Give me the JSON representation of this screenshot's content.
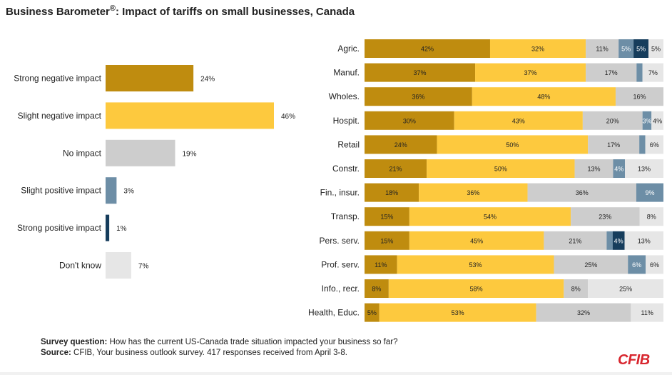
{
  "title_main": "Business Barometer",
  "title_reg": "®",
  "title_rest": ": Impact of tariffs on small businesses, Canada",
  "footer": {
    "question_label": "Survey question:",
    "question_text": " How has the current US-Canada trade situation impacted your business so far?",
    "source_label": "Source:",
    "source_text": " CFIB, Your business outlook survey. 417 responses received from April 3-8."
  },
  "logo": "CFIB",
  "colors": {
    "strong_negative": "#bf8c0f",
    "slight_negative": "#fdc93e",
    "no_impact": "#cdcdcd",
    "slight_positive": "#6d8ea6",
    "strong_positive": "#163d5c",
    "dont_know": "#e6e6e6"
  },
  "chart_data": [
    {
      "type": "bar",
      "orientation": "horizontal",
      "categories": [
        "Strong negative impact",
        "Slight negative impact",
        "No impact",
        "Slight positive impact",
        "Strong positive impact",
        "Don't know"
      ],
      "values": [
        24,
        46,
        19,
        3,
        1,
        7
      ],
      "value_labels": [
        "24%",
        "46%",
        "19%",
        "3%",
        "1%",
        "7%"
      ]
    },
    {
      "type": "bar",
      "orientation": "horizontal",
      "stacked": true,
      "categories": [
        "Agric.",
        "Manuf.",
        "Wholes.",
        "Hospit.",
        "Retail",
        "Constr.",
        "Fin., insur.",
        "Transp.",
        "Pers. serv.",
        "Prof. serv.",
        "Info., recr.",
        "Health, Educ."
      ],
      "series": [
        {
          "values": [
            42,
            37,
            36,
            30,
            24,
            21,
            18,
            15,
            15,
            11,
            8,
            5
          ]
        },
        {
          "values": [
            32,
            37,
            48,
            43,
            50,
            50,
            36,
            54,
            45,
            53,
            58,
            53
          ]
        },
        {
          "values": [
            11,
            17,
            16,
            20,
            17,
            13,
            36,
            23,
            21,
            25,
            8,
            32
          ]
        },
        {
          "values": [
            5,
            2,
            0,
            3,
            2,
            4,
            9,
            0,
            2,
            6,
            0,
            0
          ]
        },
        {
          "values": [
            5,
            0,
            0,
            0,
            0,
            0,
            0,
            0,
            4,
            0,
            0,
            0
          ]
        },
        {
          "values": [
            5,
            7,
            0,
            4,
            6,
            13,
            0,
            8,
            13,
            6,
            25,
            11
          ]
        }
      ]
    }
  ]
}
